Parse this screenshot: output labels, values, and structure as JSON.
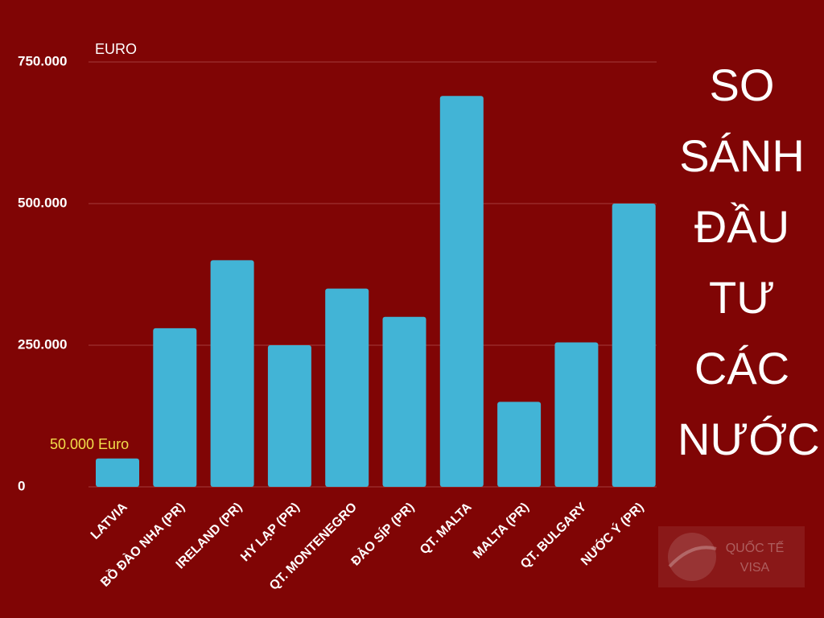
{
  "chart_data": {
    "type": "bar",
    "title": "SO SÁNH ĐẦU TƯ CÁC NƯỚC",
    "y_unit": "EURO",
    "annotation": "50.000 Euro",
    "categories": [
      "LATVIA",
      "BỒ ĐÀO NHA (PR)",
      "IRELAND (PR)",
      "HY LẠP (PR)",
      "QT. MONTENEGRO",
      "ĐẢO SÍP (PR)",
      "QT. MALTA",
      "MALTA (PR)",
      "QT. BULGARY",
      "NƯỚC Ý (PR)"
    ],
    "values": [
      50000,
      280000,
      400000,
      250000,
      350000,
      300000,
      690000,
      150000,
      255000,
      500000
    ],
    "color": "#42b4d6",
    "ylim": [
      0,
      750000
    ],
    "yticks": [
      0,
      {
        "value": 250000,
        "label": "250.000"
      },
      {
        "value": 500000,
        "label": "500.000"
      },
      {
        "value": 750000,
        "label": "750.000"
      }
    ],
    "grid": true
  },
  "watermark": {
    "line1": "QUỐC TẾ",
    "line2": "VISA"
  }
}
